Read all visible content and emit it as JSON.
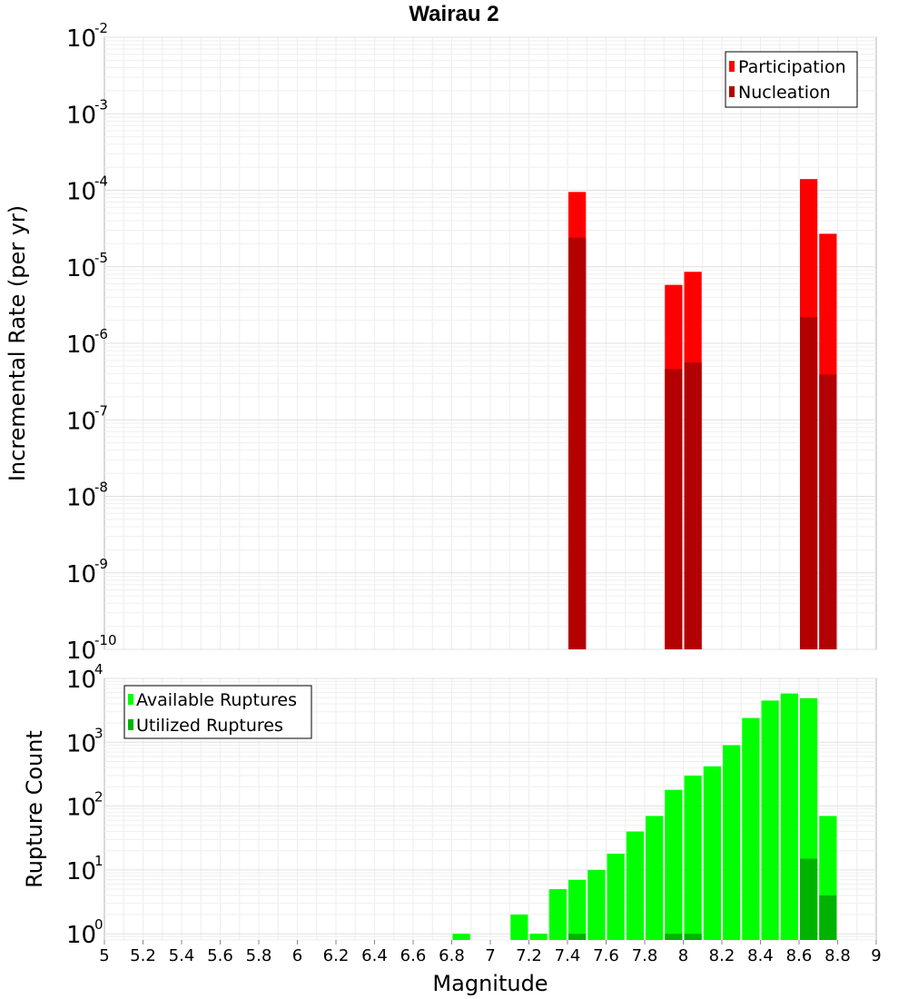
{
  "chart_data": [
    {
      "type": "bar",
      "title": "Wairau 2",
      "ylabel": "Incremental Rate (per yr)",
      "xlabel": "",
      "yscale": "log",
      "ylim": [
        1e-10,
        0.01
      ],
      "xlim": [
        5,
        9
      ],
      "grid": true,
      "overlay": true,
      "legend_position": "top-right",
      "bin_width": 0.1,
      "ytick_base": "10",
      "ytick_exponents": [
        "-10",
        "-9",
        "-8",
        "-7",
        "-6",
        "-5",
        "-4",
        "-3",
        "-2"
      ],
      "series": [
        {
          "name": "Participation",
          "color": "#ff0000",
          "x": [
            7.45,
            7.95,
            8.05,
            8.65,
            8.75
          ],
          "values": [
            9.5e-05,
            5.8e-06,
            8.6e-06,
            0.00014,
            2.7e-05
          ]
        },
        {
          "name": "Nucleation",
          "color": "#b30000",
          "x": [
            7.45,
            7.95,
            8.05,
            8.65,
            8.75
          ],
          "values": [
            2.4e-05,
            4.6e-07,
            5.6e-07,
            2.2e-06,
            3.9e-07
          ]
        }
      ]
    },
    {
      "type": "bar",
      "title": "",
      "ylabel": "Rupture Count",
      "xlabel": "Magnitude",
      "yscale": "log",
      "ylim": [
        0.8,
        10000
      ],
      "xlim": [
        5,
        9
      ],
      "grid": true,
      "overlay": true,
      "legend_position": "top-left",
      "bin_width": 0.1,
      "ytick_base": "10",
      "ytick_exponents": [
        "0",
        "1",
        "2",
        "3",
        "4"
      ],
      "xticks": [
        "5",
        "5.2",
        "5.4",
        "5.6",
        "5.8",
        "6",
        "6.2",
        "6.4",
        "6.6",
        "6.8",
        "7",
        "7.2",
        "7.4",
        "7.6",
        "7.8",
        "8",
        "8.2",
        "8.4",
        "8.6",
        "8.8",
        "9"
      ],
      "series": [
        {
          "name": "Available Ruptures",
          "color": "#00ff00",
          "x": [
            6.85,
            7.15,
            7.25,
            7.35,
            7.45,
            7.55,
            7.65,
            7.75,
            7.85,
            7.95,
            8.05,
            8.15,
            8.25,
            8.35,
            8.45,
            8.55,
            8.65,
            8.75
          ],
          "values": [
            1,
            2,
            1,
            5,
            7,
            10,
            18,
            40,
            70,
            180,
            300,
            420,
            900,
            2400,
            4500,
            5800,
            4900,
            70
          ]
        },
        {
          "name": "Utilized Ruptures",
          "color": "#00b300",
          "x": [
            7.45,
            7.95,
            8.05,
            8.65,
            8.75
          ],
          "values": [
            1,
            1,
            1,
            15,
            4
          ]
        }
      ]
    }
  ]
}
